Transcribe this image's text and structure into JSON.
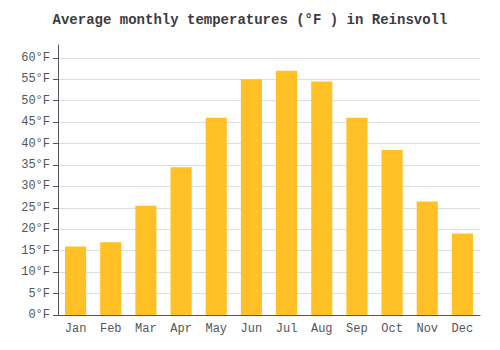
{
  "chart_data": {
    "type": "bar",
    "title": "Average monthly temperatures (°F ) in Reinsvoll",
    "categories": [
      "Jan",
      "Feb",
      "Mar",
      "Apr",
      "May",
      "Jun",
      "Jul",
      "Aug",
      "Sep",
      "Oct",
      "Nov",
      "Dec"
    ],
    "values": [
      16,
      17,
      25.5,
      34.5,
      46,
      55,
      57,
      54.5,
      46,
      38.5,
      26.5,
      19
    ],
    "color": "#FFC125",
    "ylim": [
      0,
      63
    ],
    "yticks": [
      {
        "value": 0,
        "label": "0°F"
      },
      {
        "value": 5,
        "label": "5°F"
      },
      {
        "value": 10,
        "label": "10°F"
      },
      {
        "value": 15,
        "label": "15°F"
      },
      {
        "value": 20,
        "label": "20°F"
      },
      {
        "value": 25,
        "label": "25°F"
      },
      {
        "value": 30,
        "label": "30°F"
      },
      {
        "value": 35,
        "label": "35°F"
      },
      {
        "value": 40,
        "label": "40°F"
      },
      {
        "value": 45,
        "label": "45°F"
      },
      {
        "value": 50,
        "label": "50°F"
      },
      {
        "value": 55,
        "label": "55°F"
      },
      {
        "value": 60,
        "label": "60°F"
      }
    ],
    "grid": true
  }
}
